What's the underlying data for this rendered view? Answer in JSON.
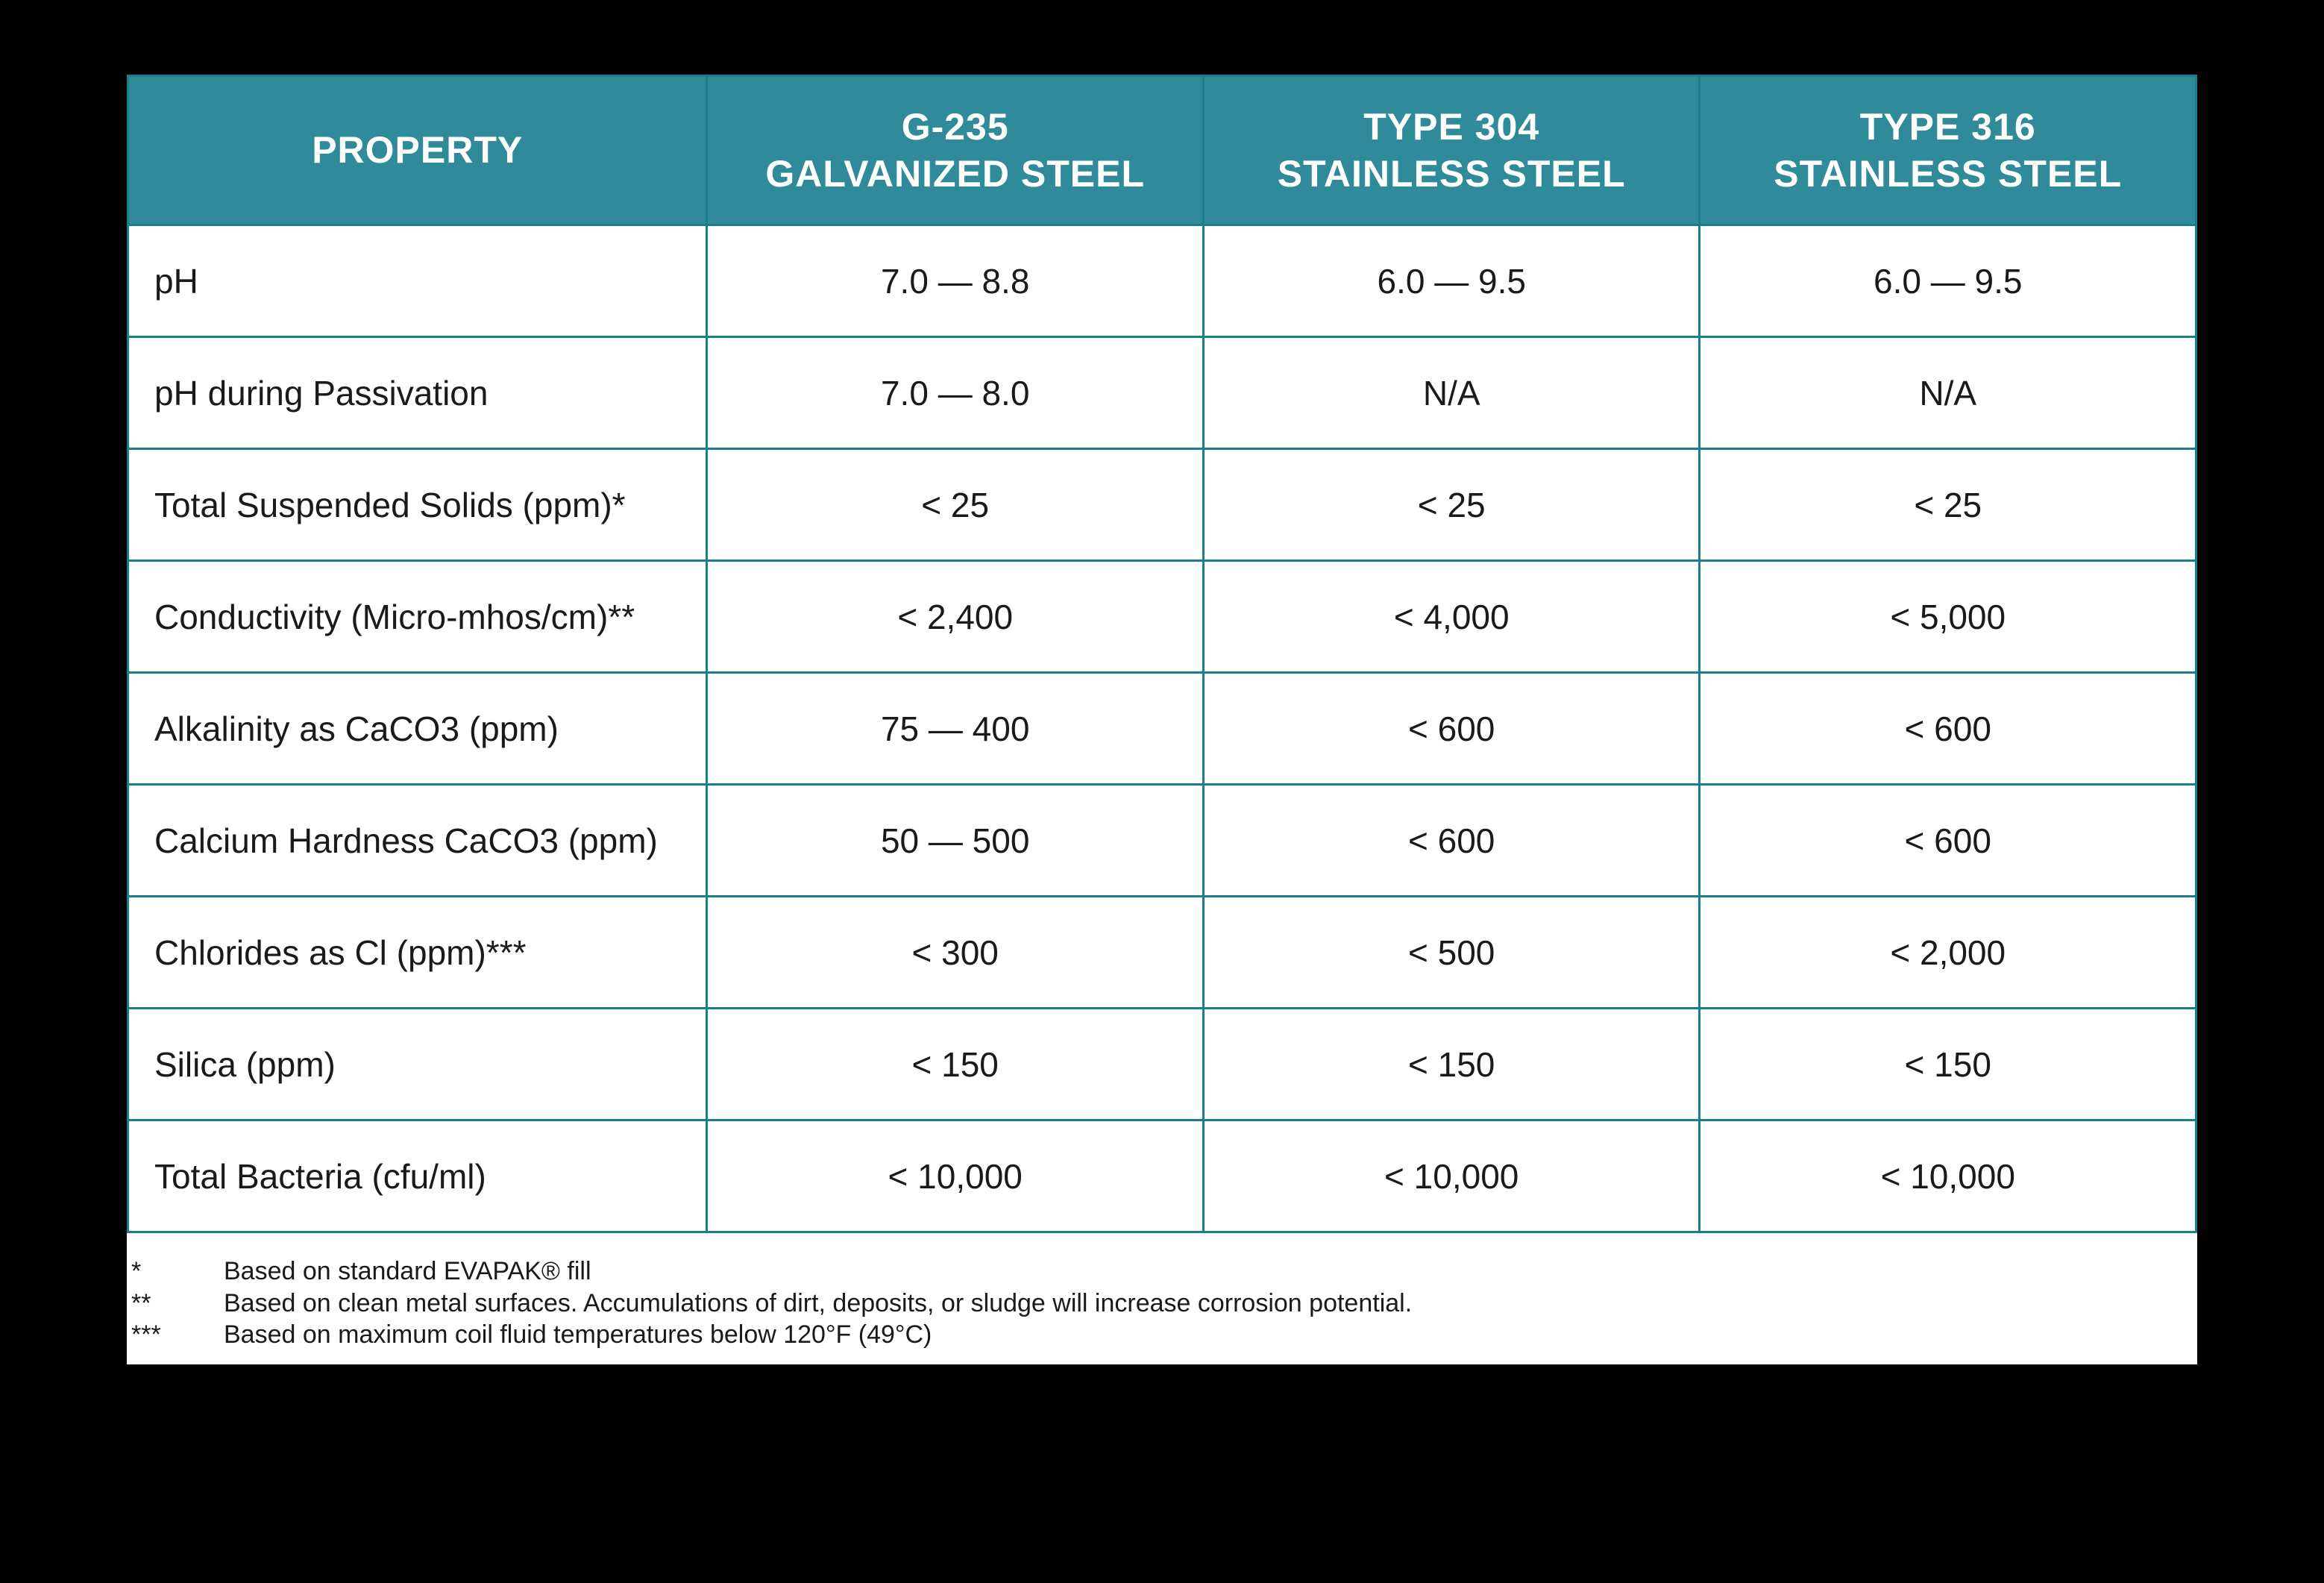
{
  "table": {
    "type": "table",
    "header_bg": "#2f8a99",
    "header_fg": "#ffffff",
    "border_color": "#1b7e8c",
    "cell_bg": "#ffffff",
    "cell_fg": "#1a1a1a",
    "header_fontsize_pt": 22,
    "body_fontsize_pt": 20,
    "columns": [
      {
        "line1": "PROPERTY",
        "line2": "",
        "align": "left",
        "width_pct": 28
      },
      {
        "line1": "G-235",
        "line2": "GALVANIZED STEEL",
        "align": "center",
        "width_pct": 24
      },
      {
        "line1": "TYPE 304",
        "line2": "STAINLESS STEEL",
        "align": "center",
        "width_pct": 24
      },
      {
        "line1": "TYPE 316",
        "line2": "STAINLESS STEEL",
        "align": "center",
        "width_pct": 24
      }
    ],
    "rows": [
      {
        "property": "pH",
        "g235": "7.0 — 8.8",
        "t304": "6.0 — 9.5",
        "t316": "6.0 — 9.5"
      },
      {
        "property": "pH during Passivation",
        "g235": "7.0 — 8.0",
        "t304": "N/A",
        "t316": "N/A"
      },
      {
        "property": "Total Suspended Solids (ppm)*",
        "g235": "< 25",
        "t304": "< 25",
        "t316": "< 25"
      },
      {
        "property": "Conductivity (Micro-mhos/cm)**",
        "g235": "< 2,400",
        "t304": "< 4,000",
        "t316": "< 5,000"
      },
      {
        "property": "Alkalinity as CaCO3 (ppm)",
        "g235": "75 — 400",
        "t304": "< 600",
        "t316": "< 600"
      },
      {
        "property": "Calcium Hardness CaCO3 (ppm)",
        "g235": "50 — 500",
        "t304": "< 600",
        "t316": "< 600"
      },
      {
        "property": "Chlorides as Cl (ppm)***",
        "g235": "< 300",
        "t304": "< 500",
        "t316": "< 2,000"
      },
      {
        "property": "Silica (ppm)",
        "g235": "< 150",
        "t304": "< 150",
        "t316": "< 150"
      },
      {
        "property": "Total Bacteria (cfu/ml)",
        "g235": "< 10,000",
        "t304": "< 10,000",
        "t316": "< 10,000"
      }
    ]
  },
  "footnotes": [
    {
      "mark": "*",
      "text": "Based on standard EVAPAK® fill"
    },
    {
      "mark": "**",
      "text": "Based on clean metal surfaces. Accumulations of dirt, deposits, or sludge will increase corrosion potential."
    },
    {
      "mark": "***",
      "text": "Based on maximum coil fluid temperatures below 120°F (49°C)"
    }
  ],
  "page_bg": "#000000",
  "sheet_bg": "#ffffff",
  "footnote_fontsize_pt": 15
}
